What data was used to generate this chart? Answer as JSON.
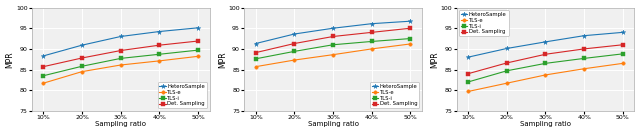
{
  "x_labels": [
    "10%",
    "20%",
    "30%",
    "40%",
    "50%"
  ],
  "x_vals": [
    10,
    20,
    30,
    40,
    50
  ],
  "subplots": [
    {
      "ylabel": "MPR",
      "xlabel": "Sampling ratio",
      "ylim": [
        75,
        100
      ],
      "yticks": [
        75,
        80,
        85,
        90,
        95,
        100
      ],
      "legend_loc": "lower right",
      "series": {
        "HeteroSample": [
          88.3,
          90.9,
          93.0,
          94.2,
          95.1
        ],
        "TLS-e": [
          81.7,
          84.5,
          86.1,
          87.1,
          88.2
        ],
        "TLS-i": [
          83.5,
          85.8,
          87.7,
          88.7,
          89.7
        ],
        "Det. Sampling": [
          85.7,
          87.8,
          89.6,
          90.9,
          91.9
        ]
      }
    },
    {
      "ylabel": "MPR",
      "xlabel": "Sampling ratio",
      "ylim": [
        75,
        100
      ],
      "yticks": [
        75,
        80,
        85,
        90,
        95,
        100
      ],
      "legend_loc": "lower right",
      "series": {
        "HeteroSample": [
          91.3,
          93.6,
          95.0,
          96.1,
          96.7
        ],
        "TLS-e": [
          85.7,
          87.3,
          88.6,
          90.0,
          91.2
        ],
        "TLS-i": [
          87.6,
          89.4,
          91.0,
          91.8,
          92.5
        ],
        "Det. Sampling": [
          89.1,
          91.3,
          93.0,
          94.0,
          95.0
        ]
      }
    },
    {
      "ylabel": "MPR",
      "xlabel": "Sampling ratio",
      "ylim": [
        75,
        100
      ],
      "yticks": [
        75,
        80,
        85,
        90,
        95,
        100
      ],
      "legend_loc": "upper left",
      "series": {
        "HeteroSample": [
          88.0,
          90.1,
          91.7,
          93.2,
          94.0
        ],
        "TLS-e": [
          79.7,
          81.7,
          83.7,
          85.2,
          86.5
        ],
        "TLS-i": [
          82.0,
          84.7,
          86.5,
          87.7,
          88.8
        ],
        "Det. Sampling": [
          84.0,
          86.6,
          88.7,
          90.0,
          91.0
        ]
      }
    }
  ],
  "colors": {
    "HeteroSample": "#1f77b4",
    "TLS-e": "#ff7f0e",
    "TLS-i": "#2ca02c",
    "Det. Sampling": "#d62728"
  },
  "legend_order": [
    "HeteroSample",
    "TLS-e",
    "TLS-i",
    "Det. Sampling"
  ],
  "legend_name_override": {
    "2": {
      "Det. Sampling": "Det. Samplirg"
    }
  },
  "figsize": [
    6.4,
    1.33
  ],
  "dpi": 100
}
